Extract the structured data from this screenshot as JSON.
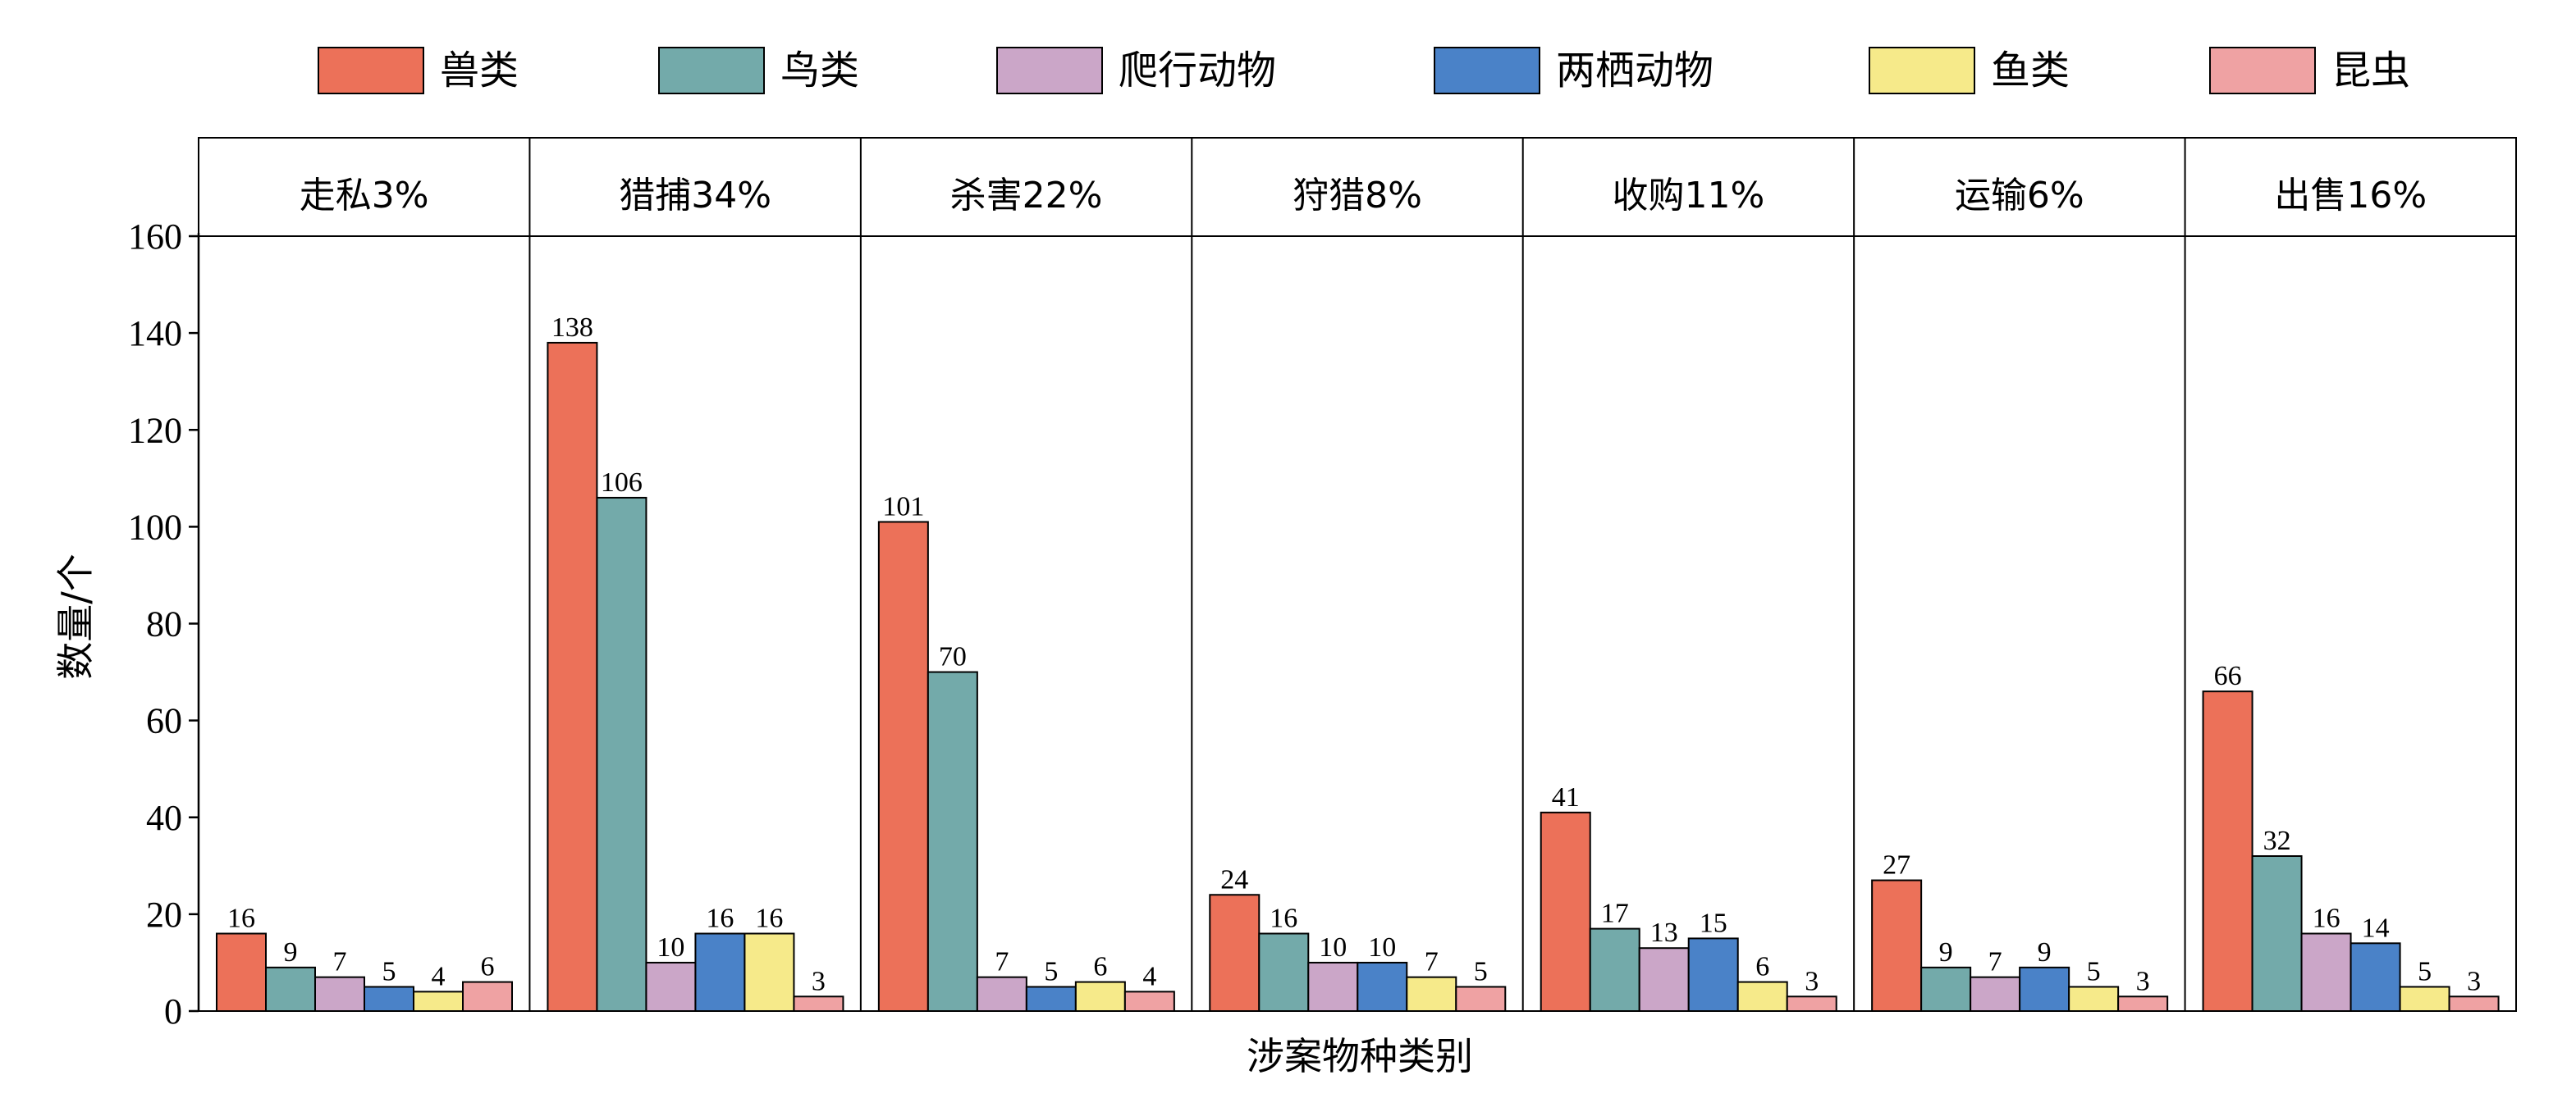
{
  "chart_data": {
    "type": "bar",
    "xlabel": "涉案物种类别",
    "ylabel": "数量/个",
    "ylim": [
      0,
      160
    ],
    "yticks": [
      0,
      20,
      40,
      60,
      80,
      100,
      120,
      140,
      160
    ],
    "legend_position": "top",
    "grid": false,
    "categories": [
      "走私3%",
      "猎捕34%",
      "杀害22%",
      "狩猎8%",
      "收购11%",
      "运输6%",
      "出售16%"
    ],
    "series": [
      {
        "name": "兽类",
        "color": "#ec7159",
        "values": [
          16,
          138,
          101,
          24,
          41,
          27,
          66
        ]
      },
      {
        "name": "鸟类",
        "color": "#73aaaa",
        "values": [
          9,
          106,
          70,
          16,
          17,
          9,
          32
        ]
      },
      {
        "name": "爬行动物",
        "color": "#cba6c8",
        "values": [
          7,
          10,
          7,
          10,
          13,
          7,
          16
        ]
      },
      {
        "name": "两栖动物",
        "color": "#4a82c8",
        "values": [
          5,
          16,
          5,
          10,
          15,
          9,
          14
        ]
      },
      {
        "name": "鱼类",
        "color": "#f6ea8a",
        "values": [
          4,
          16,
          6,
          7,
          6,
          5,
          5
        ]
      },
      {
        "name": "昆虫",
        "color": "#efa2a3",
        "values": [
          6,
          3,
          4,
          5,
          3,
          3,
          3
        ]
      }
    ]
  }
}
